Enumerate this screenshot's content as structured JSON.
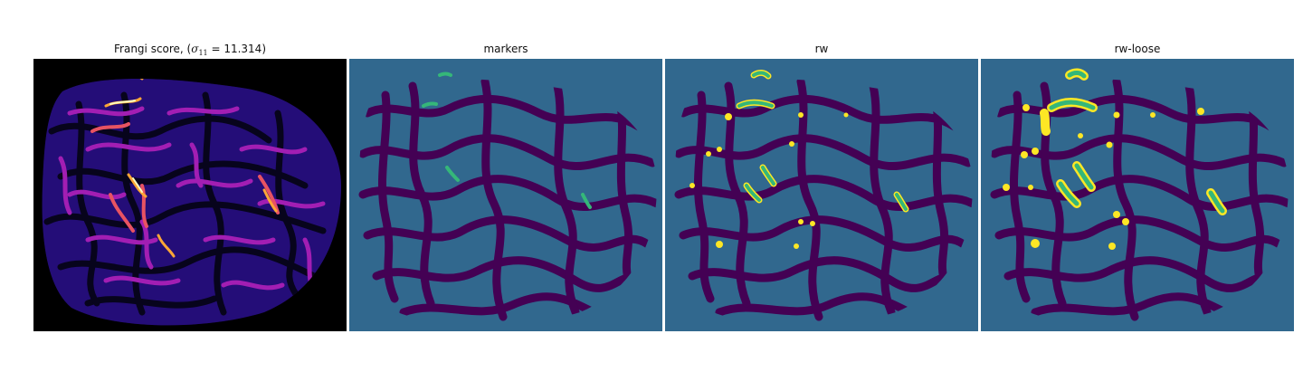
{
  "panels": [
    {
      "title_prefix": "Frangi score, (",
      "title_symbol": "σ",
      "title_subscript": "11",
      "title_suffix": " = 11.314)",
      "colormap": "magma"
    },
    {
      "title": "markers",
      "colormap": "viridis"
    },
    {
      "title": "rw",
      "colormap": "viridis"
    },
    {
      "title": "rw-loose",
      "colormap": "viridis"
    }
  ],
  "colors": {
    "background_dark": "#000000",
    "magma_low": "#2b0f8a",
    "magma_mid": "#a21eb3",
    "magma_high": "#fca636",
    "magma_peak": "#fcfdbf",
    "seg_background": "#31688e",
    "seg_region": "#440154",
    "seg_marker": "#35b779",
    "seg_loose": "#fde725"
  }
}
